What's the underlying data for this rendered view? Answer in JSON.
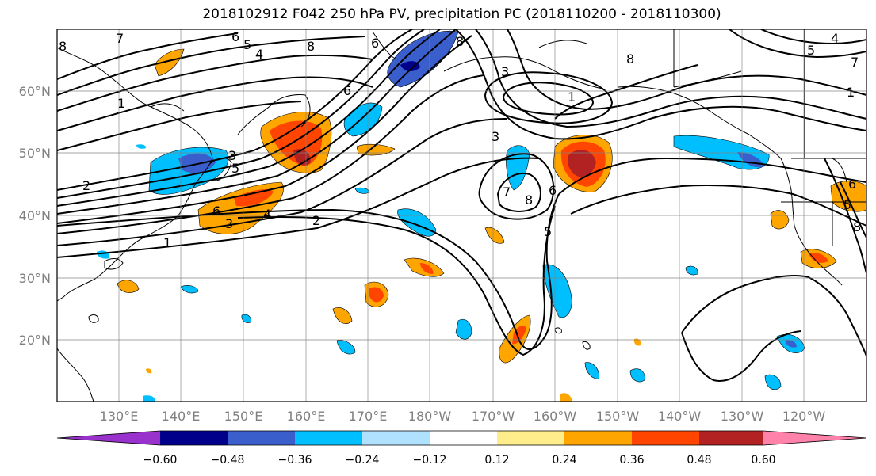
{
  "title": "2018102912 F042 250 hPa PV, precipitation PC (2018110200 - 2018110300)",
  "lat_labels": [
    "60°N",
    "50°N",
    "40°N",
    "30°N",
    "20°N"
  ],
  "lon_labels": [
    "130°E",
    "140°E",
    "150°E",
    "160°E",
    "170°E",
    "180°W",
    "170°W",
    "160°W",
    "150°W",
    "140°W",
    "130°W",
    "120°W"
  ],
  "colorbar": {
    "tick_labels": [
      "−0.60",
      "−0.48",
      "−0.36",
      "−0.24",
      "−0.12",
      "0.12",
      "0.24",
      "0.36",
      "0.48",
      "0.60"
    ],
    "colors": [
      "#9932cc",
      "#00008b",
      "#3a5fcd",
      "#00bfff",
      "#b0e2ff",
      "#ffffff",
      "#ffec8b",
      "#ffa500",
      "#ff4500",
      "#b22222",
      "#ff82ab"
    ]
  },
  "contour_labels": [
    "8",
    "7",
    "6",
    "5",
    "4",
    "8",
    "6",
    "8",
    "3",
    "8",
    "1",
    "6",
    "5",
    "4",
    "7",
    "1",
    "3",
    "3",
    "5",
    "2",
    "6",
    "5",
    "4",
    "3",
    "1",
    "2",
    "7",
    "6",
    "8",
    "5",
    "6",
    "1",
    "8"
  ]
}
